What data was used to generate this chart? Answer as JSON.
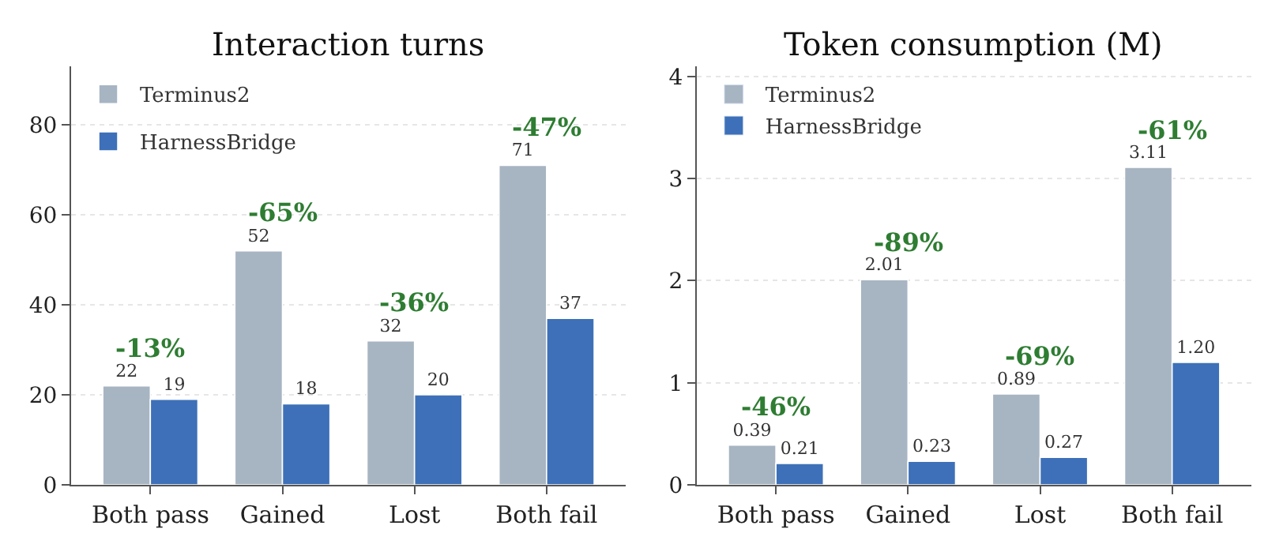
{
  "chart_data": [
    {
      "type": "bar",
      "title": "Interaction turns",
      "categories": [
        "Both pass",
        "Gained",
        "Lost",
        "Both fail"
      ],
      "series": [
        {
          "name": "Terminus2",
          "color": "#a7b4c2",
          "values": [
            22,
            52,
            32,
            71
          ]
        },
        {
          "name": "HarnessBridge",
          "color": "#3d70b8",
          "values": [
            19,
            18,
            20,
            37
          ]
        }
      ],
      "ylim": [
        0,
        93
      ],
      "yticks": [
        0,
        20,
        40,
        60,
        80
      ],
      "grid": "y",
      "legend": "top left",
      "data_labels": true,
      "annotations": [
        "-13%",
        "-65%",
        "-36%",
        "-47%"
      ]
    },
    {
      "type": "bar",
      "title": "Token consumption (M)",
      "categories": [
        "Both pass",
        "Gained",
        "Lost",
        "Both fail"
      ],
      "series": [
        {
          "name": "Terminus2",
          "color": "#a7b4c2",
          "values": [
            0.39,
            2.01,
            0.89,
            3.11
          ],
          "value_labels": [
            "0.39",
            "2.01",
            "0.89",
            "3.11"
          ]
        },
        {
          "name": "HarnessBridge",
          "color": "#3d70b8",
          "values": [
            0.21,
            0.23,
            0.27,
            1.2
          ],
          "value_labels": [
            "0.21",
            "0.23",
            "0.27",
            "1.20"
          ]
        }
      ],
      "ylim": [
        0,
        4.1
      ],
      "yticks": [
        0,
        1,
        2,
        3,
        4
      ],
      "grid": "y",
      "legend": "top left",
      "annotations": [
        "-46%",
        "-89%",
        "-69%",
        "-61%"
      ]
    }
  ]
}
